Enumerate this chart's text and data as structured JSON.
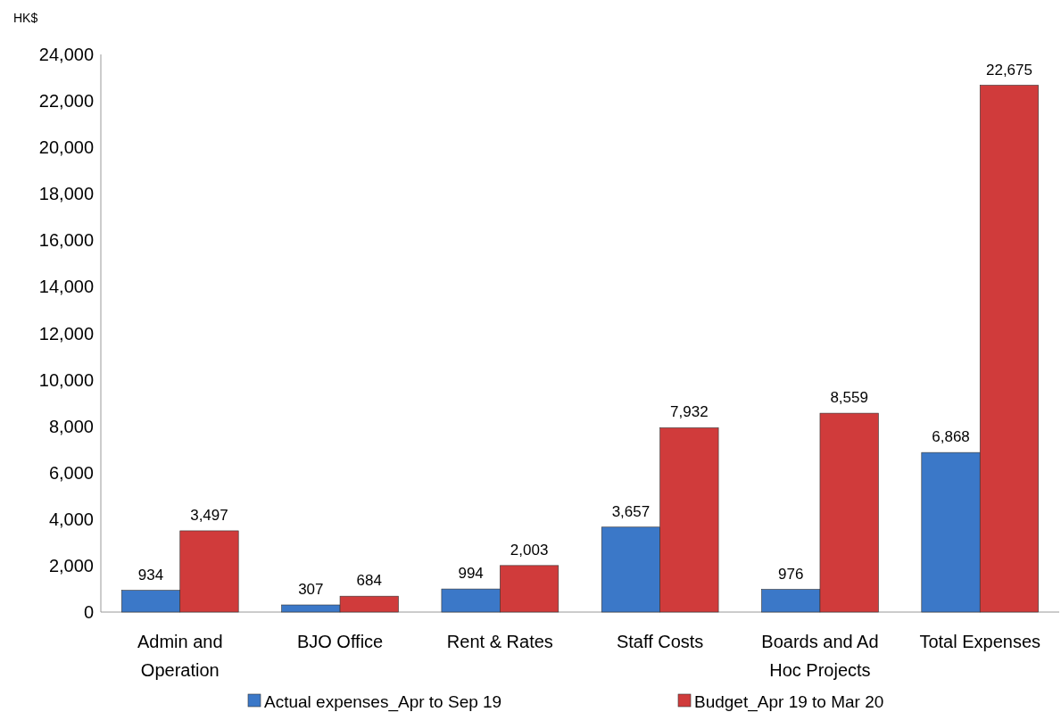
{
  "chart_data": {
    "type": "bar",
    "ylabel": "HK$",
    "categories": [
      "Admin and Operation",
      "BJO Office",
      "Rent & Rates",
      "Staff Costs",
      "Boards and Ad Hoc Projects",
      "Total Expenses"
    ],
    "series": [
      {
        "name": "Actual expenses_Apr to Sep 19",
        "color": "#3b78c8",
        "values": [
          934,
          307,
          994,
          3657,
          976,
          6868
        ],
        "value_labels": [
          "934",
          "307",
          "994",
          "3,657",
          "976",
          "6,868"
        ]
      },
      {
        "name": "Budget_Apr 19 to Mar 20",
        "color": "#d03b3b",
        "values": [
          3497,
          684,
          2003,
          7932,
          8559,
          22675
        ],
        "value_labels": [
          "3,497",
          "684",
          "2,003",
          "7,932",
          "8,559",
          "22,675"
        ]
      }
    ],
    "ylim": [
      0,
      24000
    ],
    "yticks": [
      {
        "value": 0,
        "label": "0"
      },
      {
        "value": 2000,
        "label": "2,000"
      },
      {
        "value": 4000,
        "label": "4,000"
      },
      {
        "value": 6000,
        "label": "6,000"
      },
      {
        "value": 8000,
        "label": "8,000"
      },
      {
        "value": 10000,
        "label": "10,000"
      },
      {
        "value": 12000,
        "label": "12,000"
      },
      {
        "value": 14000,
        "label": "14,000"
      },
      {
        "value": 16000,
        "label": "16,000"
      },
      {
        "value": 18000,
        "label": "18,000"
      },
      {
        "value": 20000,
        "label": "20,000"
      },
      {
        "value": 22000,
        "label": "22,000"
      },
      {
        "value": 24000,
        "label": "24,000"
      }
    ],
    "grid": false,
    "legend": "bottom"
  }
}
